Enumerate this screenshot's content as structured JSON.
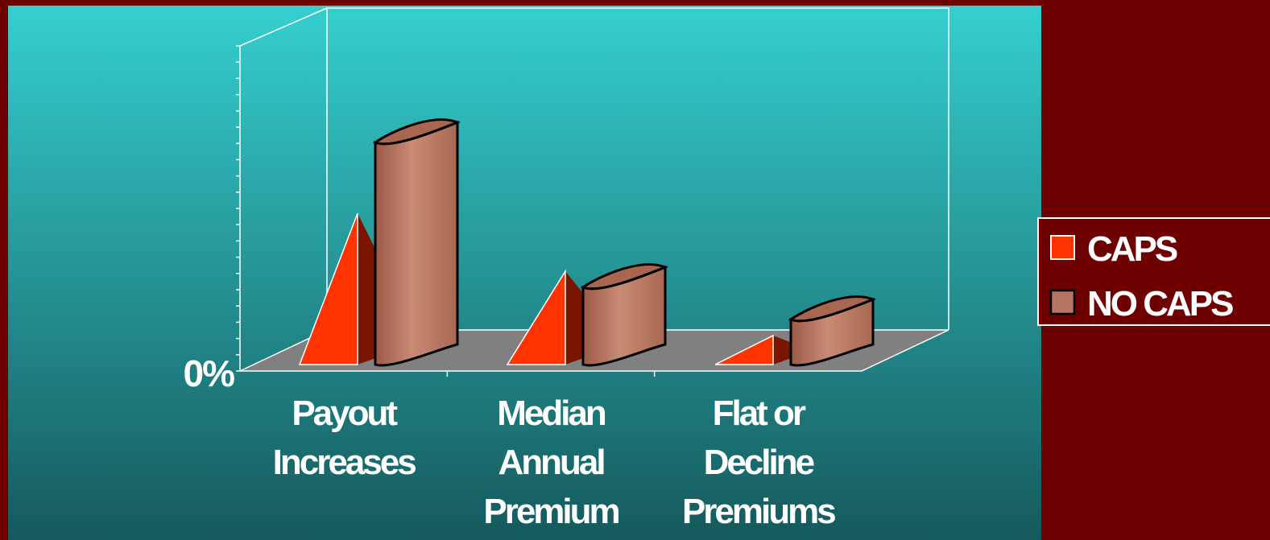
{
  "colors": {
    "frame": "#6e0000",
    "panel_top": "#35cfcf",
    "panel_bottom": "#15595c",
    "floor": "#808080",
    "caps": "#ff3300",
    "caps_shadow": "#7a1500",
    "no_caps": "#b57560"
  },
  "chart_data": {
    "type": "bar",
    "title": "",
    "xlabel": "",
    "ylabel": "",
    "y_axis_label": "0%",
    "categories": [
      "Payout Increases",
      "Median Annual Premium",
      "Flat or Decline Premiums"
    ],
    "category_lines": [
      [
        "Payout",
        "Increases"
      ],
      [
        "Median",
        "Annual",
        "Premium"
      ],
      [
        "Flat or",
        "Decline",
        "Premiums"
      ]
    ],
    "ylim": [
      0,
      100
    ],
    "series": [
      {
        "name": "CAPS",
        "shape": "pyramid",
        "values": [
          47,
          29,
          9
        ]
      },
      {
        "name": "NO CAPS",
        "shape": "cylinder",
        "values": [
          69,
          24,
          14
        ]
      }
    ],
    "grid": false,
    "legend_position": "right"
  }
}
